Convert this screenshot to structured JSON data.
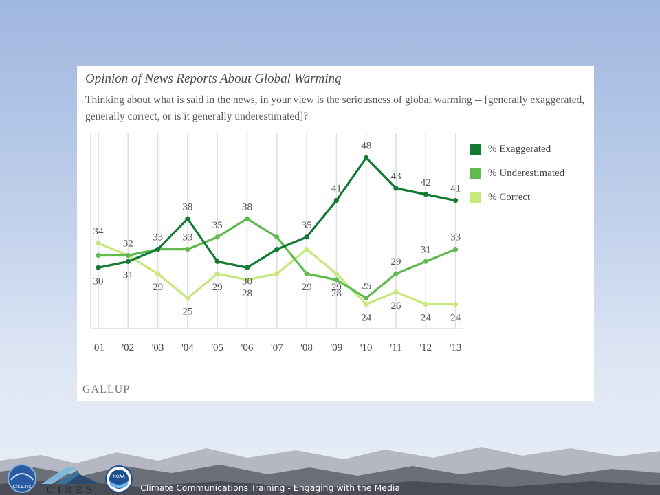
{
  "chart_data": {
    "type": "line",
    "title": "Opinion of News Reports About Global Warming",
    "subtitle": "Thinking about what is said in the news, in your view is the seriousness of global warming -- [generally exaggerated, generally correct, or is it generally underestimated]?",
    "categories": [
      "'01",
      "'02",
      "'03",
      "'04",
      "'05",
      "'06",
      "'07",
      "'08",
      "'09",
      "'10",
      "'11",
      "'12",
      "'13"
    ],
    "series": [
      {
        "name": "% Exaggerated",
        "color": "#137a36",
        "values": [
          30,
          31,
          33,
          38,
          31,
          30,
          33,
          35,
          41,
          48,
          43,
          42,
          41
        ],
        "labels": [
          "30",
          "31",
          "33",
          "38",
          "",
          "30",
          "",
          "35",
          "41",
          "48",
          "43",
          "42",
          "41"
        ]
      },
      {
        "name": "% Underestimated",
        "color": "#5fbb4f",
        "values": [
          32,
          32,
          33,
          33,
          35,
          38,
          35,
          29,
          28,
          25,
          29,
          31,
          33
        ],
        "labels": [
          "",
          "32",
          "",
          "33",
          "35",
          "38",
          "",
          "29",
          "28",
          "25",
          "29",
          "31",
          "33"
        ]
      },
      {
        "name": "% Correct",
        "color": "#c6e87f",
        "values": [
          34,
          32,
          29,
          25,
          29,
          28,
          29,
          33,
          29,
          24,
          26,
          24,
          24
        ],
        "labels": [
          "34",
          "",
          "29",
          "25",
          "29",
          "28",
          "",
          "",
          "29",
          "24",
          "26",
          "24",
          "24"
        ]
      }
    ],
    "ylim": [
      20,
      52
    ],
    "grid": "vertical",
    "legend": "right"
  },
  "source_logo": "GALLUP",
  "footer": "Climate Communications Training - Engaging with the Media",
  "logos": {
    "left_badge": "cics.nc",
    "middle": "CIRES",
    "right": "NOAA"
  }
}
